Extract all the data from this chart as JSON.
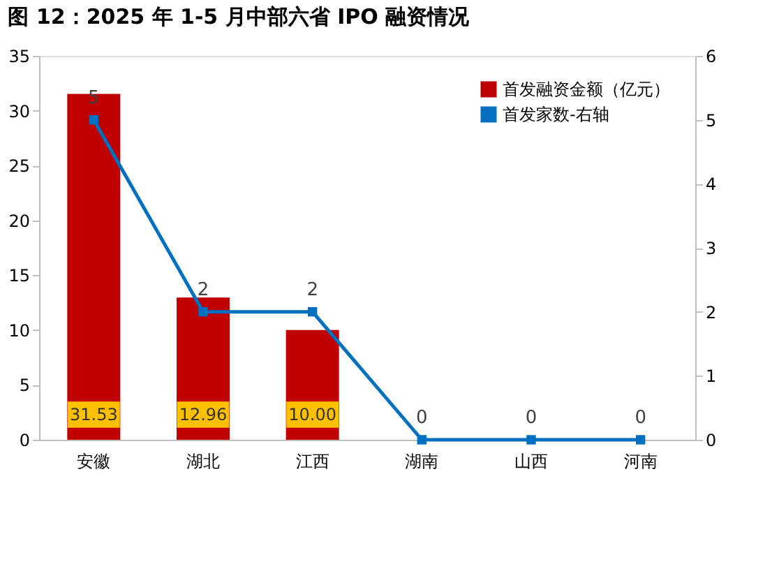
{
  "chart_data": {
    "type": "bar",
    "title": "图 12：2025 年 1-5 月中部六省 IPO 融资情况",
    "categories": [
      "安徽",
      "湖北",
      "江西",
      "湖南",
      "山西",
      "河南"
    ],
    "series": [
      {
        "name": "首发融资金额（亿元）",
        "color": "#c00000",
        "values": [
          31.53,
          12.96,
          10.0,
          0,
          0,
          0
        ],
        "value_labels": [
          "31.53",
          "12.96",
          "10.00",
          null,
          null,
          null
        ]
      },
      {
        "name": "首发家数-右轴",
        "type": "line",
        "axis": "y2",
        "color": "#0070c0",
        "values": [
          5,
          2,
          2,
          0,
          0,
          0
        ],
        "value_labels": [
          "5",
          "2",
          "2",
          "0",
          "0",
          "0"
        ]
      }
    ],
    "ylim": [
      0,
      35
    ],
    "yticks": [
      0,
      5,
      10,
      15,
      20,
      25,
      30,
      35
    ],
    "y2lim": [
      0,
      6
    ],
    "y2ticks": [
      0,
      1,
      2,
      3,
      4,
      5,
      6
    ],
    "marker": "square",
    "legend": "top right",
    "grid": false
  }
}
